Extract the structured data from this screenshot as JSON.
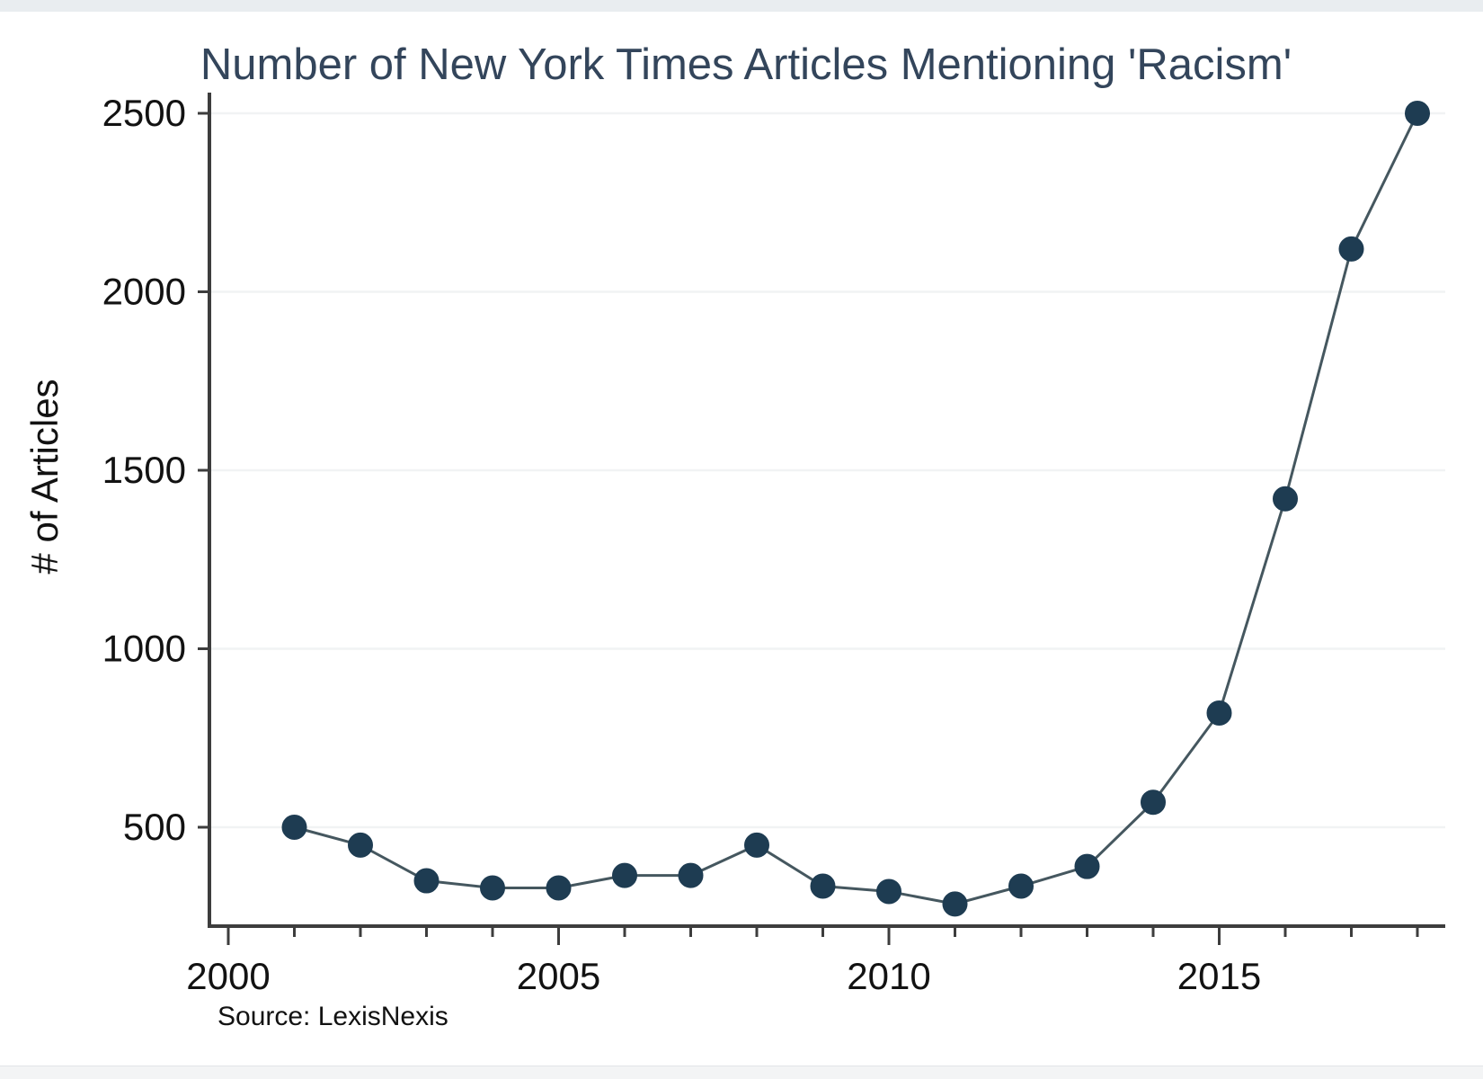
{
  "window": {
    "top_strip_color": "#e9edf0",
    "bottom_strip_color": "#f3f4f5"
  },
  "chart_data": {
    "type": "line",
    "title": "Number of New York Times Articles Mentioning 'Racism'",
    "ylabel": "# of Articles",
    "xlabel": "",
    "source_note": "Source: LexisNexis",
    "x": [
      2001,
      2002,
      2003,
      2004,
      2005,
      2006,
      2007,
      2008,
      2009,
      2010,
      2011,
      2012,
      2013,
      2014,
      2015,
      2016,
      2017,
      2018
    ],
    "series": [
      {
        "name": "NYT articles mentioning 'Racism'",
        "values": [
          500,
          450,
          350,
          330,
          330,
          365,
          365,
          450,
          335,
          320,
          285,
          335,
          390,
          570,
          820,
          1420,
          2120,
          2500
        ]
      }
    ],
    "y_ticks": [
      500,
      1000,
      1500,
      2000,
      2500
    ],
    "x_axis": {
      "major_ticks": [
        2000,
        2005,
        2010,
        2015
      ],
      "major_tick_labels": [
        "2000",
        "2005",
        "2010",
        "2015"
      ],
      "minor_tick_from": 2000,
      "minor_tick_to": 2018
    },
    "ylim": [
      225,
      2570
    ],
    "xlim": [
      2000,
      2018.4
    ],
    "grid": true,
    "legend": "none",
    "marker": "circle",
    "colors": {
      "marker": "#1e3c52",
      "line": "#45575f",
      "title": "#33455b",
      "axis": "#3d3d3d",
      "grid": "#f1f3f4",
      "tick_label": "#121212",
      "source": "#121212"
    }
  }
}
